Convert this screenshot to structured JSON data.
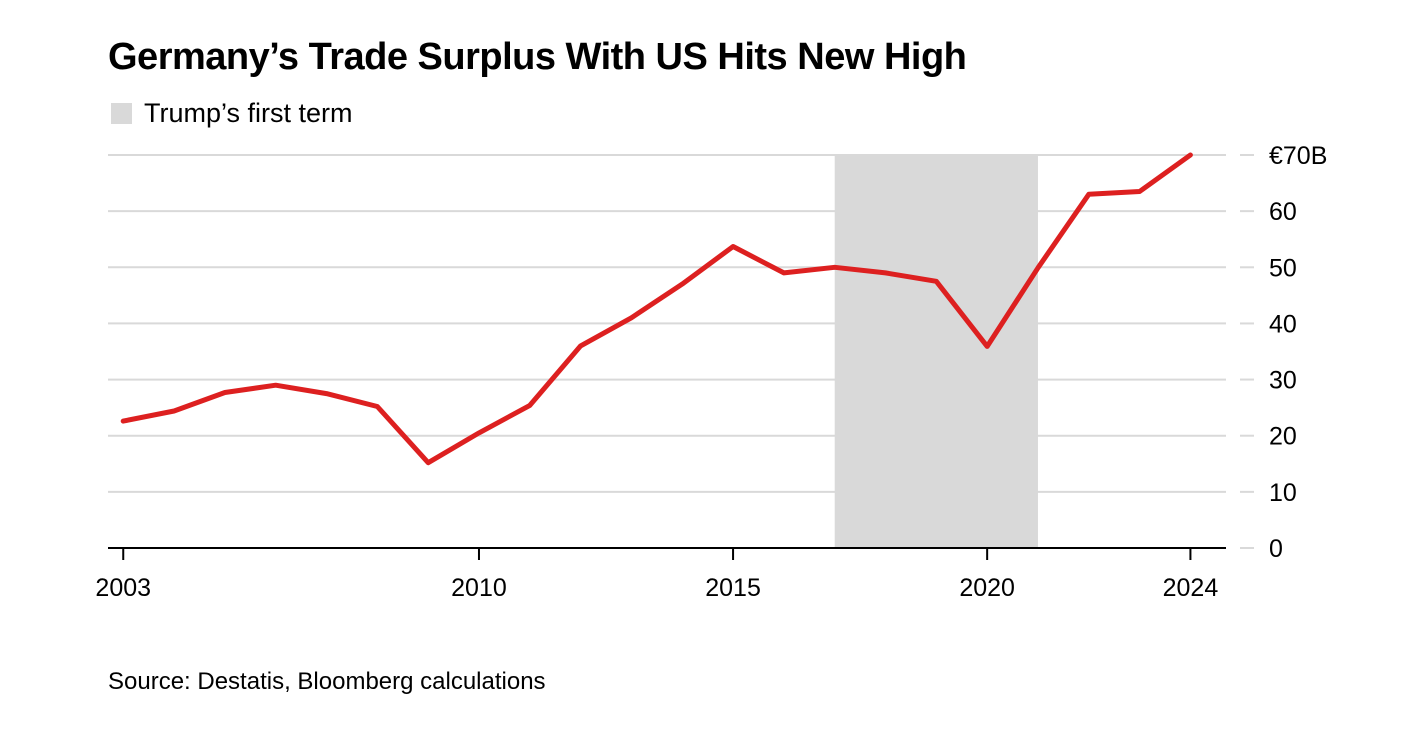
{
  "title": "Germany’s Trade Surplus With US Hits New High",
  "legend": {
    "label": "Trump’s first term",
    "color": "#d9d9d9"
  },
  "source": "Source: Destatis, Bloomberg calculations",
  "chart_data": {
    "type": "line",
    "title": "Germany’s Trade Surplus With US Hits New High",
    "xlabel": "",
    "ylabel": "",
    "x": [
      2003,
      2004,
      2005,
      2006,
      2007,
      2008,
      2009,
      2010,
      2011,
      2012,
      2013,
      2014,
      2015,
      2016,
      2017,
      2018,
      2019,
      2020,
      2021,
      2022,
      2023,
      2024
    ],
    "series": [
      {
        "values": [
          22.6,
          24.4,
          27.7,
          29.0,
          27.5,
          25.2,
          15.2,
          20.5,
          25.4,
          36.0,
          41.0,
          47.0,
          53.7,
          49.0,
          50.0,
          49.0,
          47.5,
          35.9,
          49.9,
          63.0,
          63.5,
          70.0
        ],
        "color": "#dd2020"
      }
    ],
    "xlim": [
      2002.7,
      2024.7
    ],
    "ylim": [
      0,
      70
    ],
    "xticks": [
      2003,
      2010,
      2015,
      2020,
      2024
    ],
    "xtick_labels": [
      "2003",
      "2010",
      "2015",
      "2020",
      "2024"
    ],
    "yticks": [
      0,
      10,
      20,
      30,
      40,
      50,
      60,
      70
    ],
    "ytick_labels": [
      "0",
      "10",
      "20",
      "30",
      "40",
      "50",
      "60",
      "€70B"
    ],
    "shaded_region": {
      "x_start": 2017,
      "x_end": 2021,
      "label": "Trump’s first term",
      "color": "#d9d9d9"
    },
    "y_axis_side": "right",
    "grid": "horizontal",
    "legend_position": "top-left"
  }
}
